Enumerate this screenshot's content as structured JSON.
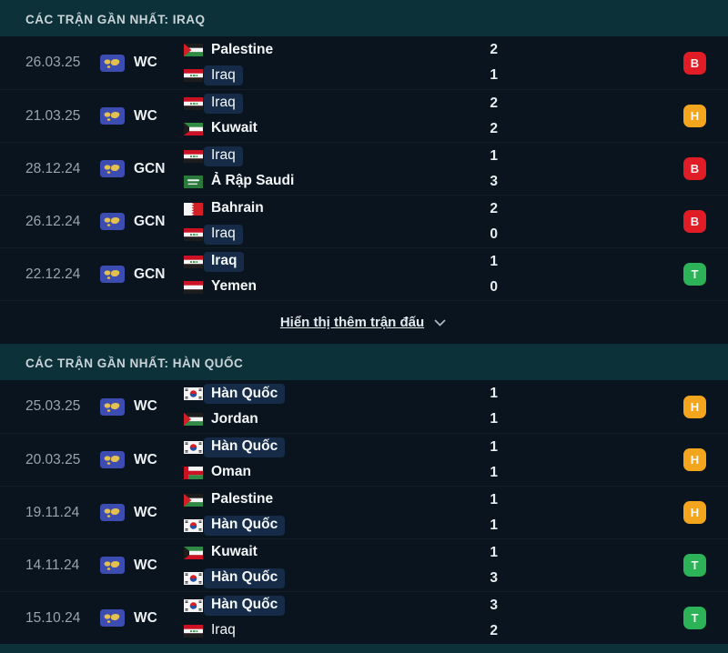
{
  "panel": {
    "bg_teal": "#0d3139",
    "bg_rows": "#0a141e",
    "highlight_pill": "#162b48"
  },
  "badges": {
    "loss": {
      "letter": "B",
      "color": "#e01d26"
    },
    "draw": {
      "letter": "H",
      "color": "#f3a51d"
    },
    "win": {
      "letter": "T",
      "color": "#2cb257"
    }
  },
  "sections": [
    {
      "header": "CÁC TRẬN GẦN NHẤT: IRAQ",
      "show_more": "Hiển thị thêm trận đấu",
      "matches": [
        {
          "date": "26.03.25",
          "comp": "WC",
          "teams": [
            {
              "name": "Palestine",
              "flag": "palestine",
              "highlighted": false,
              "bold": true,
              "score": "2"
            },
            {
              "name": "Iraq",
              "flag": "iraq",
              "highlighted": true,
              "bold": false,
              "score": "1"
            }
          ],
          "outcome": "loss"
        },
        {
          "date": "21.03.25",
          "comp": "WC",
          "teams": [
            {
              "name": "Iraq",
              "flag": "iraq",
              "highlighted": true,
              "bold": false,
              "score": "2"
            },
            {
              "name": "Kuwait",
              "flag": "kuwait",
              "highlighted": false,
              "bold": true,
              "score": "2"
            }
          ],
          "outcome": "draw"
        },
        {
          "date": "28.12.24",
          "comp": "GCN",
          "teams": [
            {
              "name": "Iraq",
              "flag": "iraq",
              "highlighted": true,
              "bold": false,
              "score": "1"
            },
            {
              "name": "Ả Rập Saudi",
              "flag": "saudi",
              "highlighted": false,
              "bold": true,
              "score": "3"
            }
          ],
          "outcome": "loss"
        },
        {
          "date": "26.12.24",
          "comp": "GCN",
          "teams": [
            {
              "name": "Bahrain",
              "flag": "bahrain",
              "highlighted": false,
              "bold": true,
              "score": "2"
            },
            {
              "name": "Iraq",
              "flag": "iraq",
              "highlighted": true,
              "bold": false,
              "score": "0"
            }
          ],
          "outcome": "loss"
        },
        {
          "date": "22.12.24",
          "comp": "GCN",
          "teams": [
            {
              "name": "Iraq",
              "flag": "iraq",
              "highlighted": true,
              "bold": true,
              "score": "1"
            },
            {
              "name": "Yemen",
              "flag": "yemen",
              "highlighted": false,
              "bold": true,
              "score": "0"
            }
          ],
          "outcome": "win"
        }
      ]
    },
    {
      "header": "CÁC TRẬN GẦN NHẤT: HÀN QUỐC",
      "show_more": null,
      "matches": [
        {
          "date": "25.03.25",
          "comp": "WC",
          "teams": [
            {
              "name": "Hàn Quốc",
              "flag": "korea",
              "highlighted": true,
              "bold": true,
              "score": "1"
            },
            {
              "name": "Jordan",
              "flag": "jordan",
              "highlighted": false,
              "bold": true,
              "score": "1"
            }
          ],
          "outcome": "draw"
        },
        {
          "date": "20.03.25",
          "comp": "WC",
          "teams": [
            {
              "name": "Hàn Quốc",
              "flag": "korea",
              "highlighted": true,
              "bold": true,
              "score": "1"
            },
            {
              "name": "Oman",
              "flag": "oman",
              "highlighted": false,
              "bold": true,
              "score": "1"
            }
          ],
          "outcome": "draw"
        },
        {
          "date": "19.11.24",
          "comp": "WC",
          "teams": [
            {
              "name": "Palestine",
              "flag": "palestine",
              "highlighted": false,
              "bold": true,
              "score": "1"
            },
            {
              "name": "Hàn Quốc",
              "flag": "korea",
              "highlighted": true,
              "bold": true,
              "score": "1"
            }
          ],
          "outcome": "draw"
        },
        {
          "date": "14.11.24",
          "comp": "WC",
          "teams": [
            {
              "name": "Kuwait",
              "flag": "kuwait",
              "highlighted": false,
              "bold": true,
              "score": "1"
            },
            {
              "name": "Hàn Quốc",
              "flag": "korea",
              "highlighted": true,
              "bold": true,
              "score": "3"
            }
          ],
          "outcome": "win"
        },
        {
          "date": "15.10.24",
          "comp": "WC",
          "teams": [
            {
              "name": "Hàn Quốc",
              "flag": "korea",
              "highlighted": true,
              "bold": true,
              "score": "3"
            },
            {
              "name": "Iraq",
              "flag": "iraq",
              "highlighted": false,
              "bold": false,
              "score": "2"
            }
          ],
          "outcome": "win"
        }
      ]
    }
  ]
}
